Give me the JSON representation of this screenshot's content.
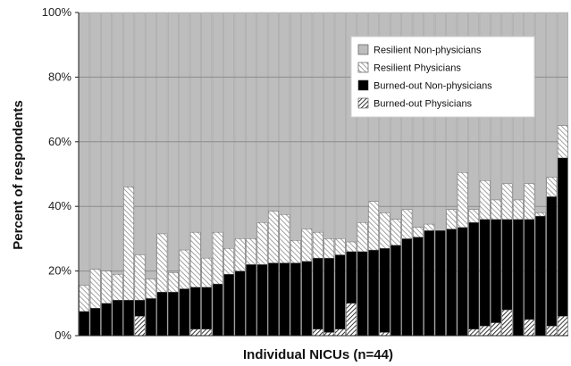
{
  "chart_data": {
    "type": "bar",
    "stacked": true,
    "xlabel": "Individual NICUs (n=44)",
    "ylabel": "Percent of respondents",
    "ylim": [
      0,
      100
    ],
    "yticks": [
      "0%",
      "20%",
      "40%",
      "60%",
      "80%",
      "100%"
    ],
    "grid": true,
    "legend_position": "top-right",
    "colors": {
      "resilient_non_physicians": "#bdbdbd",
      "resilient_physicians": "#ffffff",
      "burned_out_non_physicians": "#000000",
      "burned_out_physicians": "#ffffff"
    },
    "series": [
      {
        "name": "Resilient Non-physicians",
        "key": "resilient_non_physicians",
        "pattern": "solid"
      },
      {
        "name": "Resilient Physicians",
        "key": "resilient_physicians",
        "pattern": "hatch"
      },
      {
        "name": "Burned-out Non-physicians",
        "key": "burned_out_non_physicians",
        "pattern": "solid"
      },
      {
        "name": "Burned-out Physicians",
        "key": "burned_out_physicians",
        "pattern": "hatch-dark"
      }
    ],
    "bars": {
      "burned_out_physicians": [
        0,
        0,
        0,
        0,
        0,
        6,
        0,
        0,
        0,
        0,
        2,
        2,
        0,
        0,
        0,
        0,
        0,
        0,
        0,
        0,
        0,
        2,
        1,
        2,
        10,
        0,
        0,
        1,
        0,
        0,
        0,
        0,
        0,
        0,
        0,
        2,
        3,
        4,
        8,
        0,
        5,
        0,
        3,
        6
      ],
      "burned_out_non_physicians": [
        7.5,
        8.5,
        10,
        11,
        11,
        5,
        11.5,
        13.5,
        13.5,
        14.5,
        13,
        13,
        16,
        19,
        20,
        22,
        22,
        22.5,
        22.5,
        22.5,
        23,
        22,
        23,
        23,
        16,
        26,
        26.5,
        26,
        28,
        30,
        30.5,
        32.5,
        32.5,
        33,
        33.5,
        33,
        33,
        32,
        28,
        36,
        31,
        37,
        40,
        49
      ],
      "resilient_physicians": [
        8,
        12,
        10,
        8,
        35,
        14,
        6,
        18,
        6,
        12,
        17,
        9,
        16,
        8,
        10,
        8,
        13,
        16,
        15,
        7,
        10,
        8,
        6,
        5,
        3,
        9,
        15,
        11,
        8,
        9,
        3,
        2,
        0,
        6,
        17,
        4,
        12,
        6,
        11,
        6,
        11,
        1,
        6,
        10
      ]
    }
  }
}
